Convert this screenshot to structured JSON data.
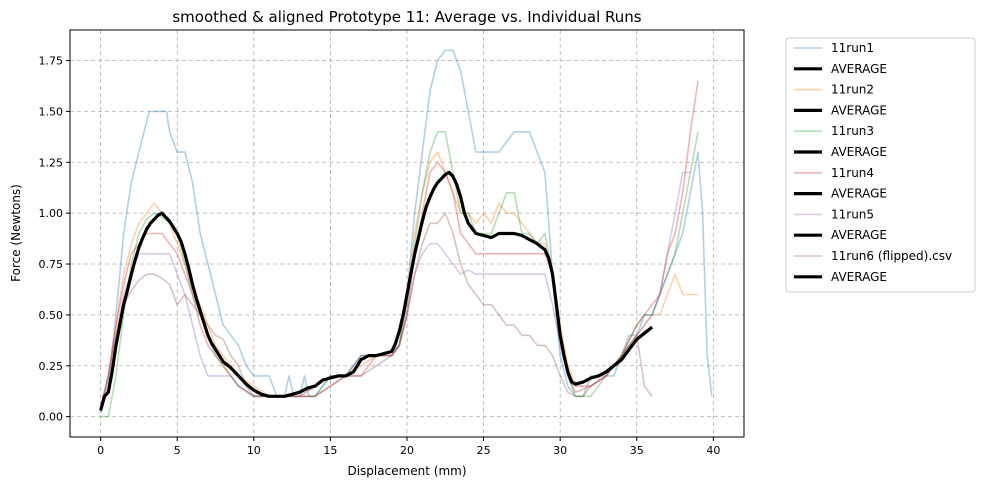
{
  "chart_data": {
    "type": "line",
    "title": "smoothed & aligned Prototype 11: Average vs. Individual Runs",
    "xlabel": "Displacement (mm)",
    "ylabel": "Force (Newtons)",
    "xlim": [
      -2,
      42
    ],
    "ylim": [
      -0.1,
      1.9
    ],
    "x_ticks": [
      0,
      5,
      10,
      15,
      20,
      25,
      30,
      35,
      40
    ],
    "y_ticks": [
      0.0,
      0.25,
      0.5,
      0.75,
      1.0,
      1.25,
      1.5,
      1.75
    ],
    "x_tick_labels": [
      "0",
      "5",
      "10",
      "15",
      "20",
      "25",
      "30",
      "35",
      "40"
    ],
    "y_tick_labels": [
      "0.00",
      "0.25",
      "0.50",
      "0.75",
      "1.00",
      "1.25",
      "1.50",
      "1.75"
    ],
    "grid": true,
    "legend_position": "outside-right",
    "legend": [
      {
        "label": "11run1",
        "color": "#1f77b4",
        "style": "thin"
      },
      {
        "label": "AVERAGE",
        "color": "#000000",
        "style": "thick"
      },
      {
        "label": "11run2",
        "color": "#ff7f0e",
        "style": "thin"
      },
      {
        "label": "AVERAGE",
        "color": "#000000",
        "style": "thick"
      },
      {
        "label": "11run3",
        "color": "#2ca02c",
        "style": "thin"
      },
      {
        "label": "AVERAGE",
        "color": "#000000",
        "style": "thick"
      },
      {
        "label": "11run4",
        "color": "#d62728",
        "style": "thin"
      },
      {
        "label": "AVERAGE",
        "color": "#000000",
        "style": "thick"
      },
      {
        "label": "11run5",
        "color": "#9467bd",
        "style": "thin"
      },
      {
        "label": "AVERAGE",
        "color": "#000000",
        "style": "thick"
      },
      {
        "label": "11run6 (flipped).csv",
        "color": "#8c564b",
        "style": "thin"
      },
      {
        "label": "AVERAGE",
        "color": "#000000",
        "style": "thick"
      }
    ],
    "series": [
      {
        "name": "11run1",
        "color": "#1f77b4",
        "x": [
          0,
          0.5,
          1,
          1.5,
          2,
          2.5,
          3,
          3.2,
          4,
          4.3,
          4.5,
          5,
          5.5,
          6,
          6.5,
          7,
          7.5,
          8,
          8.5,
          9,
          9.5,
          10,
          10.5,
          11,
          11.5,
          12,
          12.3,
          12.6,
          13,
          13.3,
          13.6,
          14,
          15,
          16,
          17,
          18,
          19,
          19.5,
          20,
          20.5,
          21,
          21.5,
          22,
          22.5,
          23,
          23.5,
          24,
          24.5,
          25,
          26,
          27,
          27.5,
          28,
          28.5,
          29,
          29.3,
          29.6,
          30,
          30.5,
          31,
          31.5,
          32,
          32.5,
          33,
          33.5,
          34,
          34.5,
          35,
          35.5,
          36,
          36.5,
          37,
          37.5,
          38,
          38.5,
          39,
          39.3,
          39.6,
          39.9
        ],
        "y": [
          0.02,
          0.15,
          0.5,
          0.9,
          1.15,
          1.3,
          1.45,
          1.5,
          1.5,
          1.5,
          1.4,
          1.3,
          1.3,
          1.15,
          0.9,
          0.75,
          0.6,
          0.45,
          0.4,
          0.35,
          0.25,
          0.2,
          0.2,
          0.2,
          0.1,
          0.1,
          0.2,
          0.1,
          0.1,
          0.2,
          0.1,
          0.1,
          0.2,
          0.2,
          0.3,
          0.3,
          0.32,
          0.35,
          0.6,
          1.0,
          1.3,
          1.6,
          1.75,
          1.8,
          1.8,
          1.7,
          1.5,
          1.3,
          1.3,
          1.3,
          1.4,
          1.4,
          1.4,
          1.3,
          1.2,
          0.9,
          0.6,
          0.3,
          0.15,
          0.1,
          0.1,
          0.2,
          0.2,
          0.2,
          0.2,
          0.3,
          0.4,
          0.4,
          0.5,
          0.5,
          0.6,
          0.7,
          0.8,
          0.9,
          1.1,
          1.3,
          1.0,
          0.3,
          0.1
        ]
      },
      {
        "name": "11run2",
        "color": "#ff7f0e",
        "x": [
          0,
          0.5,
          1,
          1.5,
          2,
          2.5,
          3,
          3.5,
          4,
          4.5,
          5,
          5.5,
          6,
          6.5,
          7,
          7.5,
          8,
          8.5,
          9,
          10,
          11,
          12,
          13,
          14,
          15,
          16,
          17,
          18,
          19,
          19.5,
          20,
          20.5,
          21,
          21.5,
          22,
          22.5,
          23,
          23.5,
          24,
          24.5,
          25,
          25.5,
          26,
          26.5,
          27,
          27.5,
          28,
          28.5,
          29,
          29.5,
          30,
          30.5,
          31,
          32,
          33,
          34,
          35,
          35.5,
          36,
          36.5,
          37,
          37.5,
          38,
          38.5,
          39
        ],
        "y": [
          0.05,
          0.2,
          0.45,
          0.7,
          0.85,
          0.95,
          1.0,
          1.05,
          1.0,
          0.95,
          0.85,
          0.75,
          0.62,
          0.55,
          0.45,
          0.35,
          0.3,
          0.25,
          0.2,
          0.15,
          0.1,
          0.1,
          0.1,
          0.15,
          0.2,
          0.2,
          0.25,
          0.3,
          0.3,
          0.35,
          0.6,
          0.9,
          1.1,
          1.25,
          1.3,
          1.2,
          1.1,
          1.0,
          1.0,
          0.95,
          1.0,
          0.95,
          1.05,
          1.0,
          1.0,
          0.95,
          0.9,
          0.85,
          0.85,
          0.7,
          0.45,
          0.25,
          0.15,
          0.15,
          0.2,
          0.3,
          0.4,
          0.45,
          0.5,
          0.5,
          0.6,
          0.7,
          0.6,
          0.6,
          0.6
        ]
      },
      {
        "name": "11run3",
        "color": "#2ca02c",
        "x": [
          0,
          0.5,
          1,
          1.5,
          2,
          2.5,
          3,
          3.5,
          4,
          4.5,
          5,
          5.5,
          6,
          6.5,
          7,
          7.5,
          8,
          8.5,
          9,
          10,
          11,
          12,
          13,
          14,
          15,
          16,
          17,
          18,
          19,
          19.5,
          20,
          20.5,
          21,
          21.5,
          22,
          22.5,
          23,
          23.5,
          24,
          24.5,
          25,
          25.5,
          26,
          26.5,
          27,
          27.5,
          28,
          28.5,
          29,
          29.5,
          30,
          30.5,
          31,
          32,
          33,
          34,
          35,
          35.5,
          36,
          36.5,
          37,
          37.5,
          38,
          38.5,
          39
        ],
        "y": [
          0.0,
          0.0,
          0.2,
          0.5,
          0.75,
          0.9,
          0.97,
          1.0,
          0.98,
          0.95,
          0.9,
          0.75,
          0.6,
          0.5,
          0.4,
          0.3,
          0.25,
          0.2,
          0.15,
          0.1,
          0.1,
          0.1,
          0.1,
          0.1,
          0.2,
          0.2,
          0.3,
          0.3,
          0.3,
          0.35,
          0.55,
          0.85,
          1.1,
          1.3,
          1.4,
          1.4,
          1.2,
          1.0,
          1.0,
          0.9,
          0.9,
          0.9,
          1.0,
          1.1,
          1.1,
          0.9,
          0.9,
          0.85,
          0.9,
          0.7,
          0.4,
          0.2,
          0.1,
          0.1,
          0.2,
          0.3,
          0.45,
          0.5,
          0.5,
          0.6,
          0.7,
          0.8,
          1.0,
          1.2,
          1.4
        ]
      },
      {
        "name": "11run4",
        "color": "#d62728",
        "x": [
          0,
          0.5,
          1,
          1.5,
          2,
          2.5,
          3,
          3.5,
          4,
          4.5,
          5,
          5.5,
          6,
          6.5,
          7,
          7.5,
          8,
          8.5,
          9,
          10,
          11,
          12,
          13,
          14,
          15,
          16,
          17,
          18,
          19,
          19.5,
          20,
          20.5,
          21,
          21.5,
          22,
          22.5,
          23,
          23.5,
          24,
          24.5,
          25,
          25.5,
          26,
          26.5,
          27,
          27.5,
          28,
          28.5,
          29,
          29.5,
          30,
          30.5,
          31,
          32,
          33,
          34,
          35,
          35.5,
          36,
          36.5,
          37,
          37.5,
          38,
          38.5,
          39
        ],
        "y": [
          0.03,
          0.2,
          0.45,
          0.65,
          0.8,
          0.85,
          0.9,
          0.9,
          0.9,
          0.85,
          0.8,
          0.7,
          0.6,
          0.45,
          0.35,
          0.3,
          0.25,
          0.2,
          0.15,
          0.1,
          0.1,
          0.1,
          0.1,
          0.1,
          0.15,
          0.2,
          0.2,
          0.3,
          0.3,
          0.35,
          0.5,
          0.8,
          1.0,
          1.2,
          1.25,
          1.2,
          1.1,
          0.9,
          0.85,
          0.8,
          0.8,
          0.8,
          0.8,
          0.8,
          0.8,
          0.8,
          0.8,
          0.8,
          0.8,
          0.7,
          0.4,
          0.2,
          0.12,
          0.15,
          0.2,
          0.3,
          0.45,
          0.5,
          0.55,
          0.6,
          0.8,
          0.9,
          1.1,
          1.4,
          1.65
        ]
      },
      {
        "name": "11run5",
        "color": "#9467bd",
        "x": [
          0,
          0.5,
          1,
          1.5,
          2,
          2.5,
          3,
          3.5,
          4,
          4.5,
          5,
          5.5,
          6,
          6.5,
          7,
          7.5,
          8,
          8.5,
          9,
          10,
          11,
          12,
          13,
          14,
          15,
          16,
          17,
          18,
          19,
          19.5,
          20,
          20.5,
          21,
          21.5,
          22,
          22.5,
          23,
          23.5,
          24,
          24.5,
          25,
          25.5,
          26,
          26.5,
          27,
          27.5,
          28,
          28.5,
          29,
          29.5,
          30,
          30.5,
          31,
          32,
          33,
          34,
          35,
          35.5,
          36,
          36.5,
          37,
          37.5,
          38,
          38.5
        ],
        "y": [
          0.02,
          0.2,
          0.4,
          0.6,
          0.7,
          0.8,
          0.8,
          0.8,
          0.8,
          0.8,
          0.7,
          0.6,
          0.45,
          0.3,
          0.2,
          0.2,
          0.2,
          0.2,
          0.15,
          0.1,
          0.1,
          0.1,
          0.1,
          0.15,
          0.2,
          0.2,
          0.3,
          0.3,
          0.3,
          0.35,
          0.5,
          0.7,
          0.8,
          0.85,
          0.85,
          0.8,
          0.75,
          0.7,
          0.72,
          0.7,
          0.7,
          0.7,
          0.7,
          0.7,
          0.7,
          0.7,
          0.7,
          0.7,
          0.7,
          0.55,
          0.35,
          0.2,
          0.15,
          0.15,
          0.2,
          0.3,
          0.4,
          0.45,
          0.5,
          0.6,
          0.8,
          1.0,
          1.2,
          1.2
        ]
      },
      {
        "name": "11run6 (flipped).csv",
        "color": "#8c564b",
        "x": [
          0,
          0.5,
          1,
          1.5,
          2,
          2.5,
          3,
          3.5,
          4,
          4.5,
          5,
          5.5,
          6,
          6.5,
          7,
          7.5,
          8,
          8.5,
          9,
          9.5,
          10,
          11,
          12,
          13,
          14,
          15,
          16,
          17,
          18,
          19,
          19.5,
          20,
          20.5,
          21,
          21.5,
          22,
          22.5,
          23,
          23.5,
          24,
          24.5,
          25,
          25.5,
          26,
          26.5,
          27,
          27.5,
          28,
          28.5,
          29,
          29.5,
          30,
          30.5,
          31,
          31.5,
          32,
          33,
          34,
          35,
          35.5,
          36
        ],
        "y": [
          0.05,
          0.2,
          0.4,
          0.55,
          0.62,
          0.67,
          0.7,
          0.7,
          0.68,
          0.65,
          0.55,
          0.6,
          0.55,
          0.5,
          0.45,
          0.4,
          0.38,
          0.3,
          0.25,
          0.15,
          0.1,
          0.1,
          0.1,
          0.1,
          0.1,
          0.15,
          0.2,
          0.2,
          0.25,
          0.3,
          0.35,
          0.5,
          0.7,
          0.85,
          0.95,
          0.95,
          1.0,
          0.9,
          0.75,
          0.65,
          0.6,
          0.55,
          0.55,
          0.5,
          0.45,
          0.45,
          0.4,
          0.4,
          0.35,
          0.35,
          0.3,
          0.2,
          0.12,
          0.1,
          0.1,
          0.15,
          0.2,
          0.3,
          0.4,
          0.15,
          0.1
        ]
      },
      {
        "name": "AVERAGE",
        "color": "#000000",
        "x": [
          0,
          0.25,
          0.5,
          0.75,
          1,
          1.25,
          1.5,
          1.75,
          2,
          2.25,
          2.5,
          2.75,
          3,
          3.25,
          3.5,
          3.75,
          4,
          4.25,
          4.5,
          4.75,
          5,
          5.25,
          5.5,
          5.75,
          6,
          6.25,
          6.5,
          6.75,
          7,
          7.25,
          7.5,
          7.75,
          8,
          8.5,
          9,
          9.5,
          10,
          10.5,
          11,
          11.5,
          12,
          12.5,
          13,
          13.5,
          14,
          14.5,
          15,
          15.5,
          16,
          16.5,
          17,
          17.5,
          18,
          18.5,
          19,
          19.25,
          19.5,
          19.75,
          20,
          20.25,
          20.5,
          20.75,
          21,
          21.25,
          21.5,
          21.75,
          22,
          22.25,
          22.5,
          22.75,
          23,
          23.25,
          23.5,
          23.75,
          24,
          24.5,
          25,
          25.5,
          26,
          26.5,
          27,
          27.5,
          28,
          28.5,
          29,
          29.25,
          29.5,
          29.75,
          30,
          30.25,
          30.5,
          30.75,
          31,
          31.5,
          32,
          32.5,
          33,
          33.5,
          34,
          34.5,
          35,
          35.5,
          36
        ],
        "y": [
          0.03,
          0.1,
          0.12,
          0.22,
          0.35,
          0.45,
          0.55,
          0.62,
          0.7,
          0.77,
          0.83,
          0.88,
          0.92,
          0.95,
          0.97,
          0.99,
          1.0,
          0.98,
          0.96,
          0.93,
          0.9,
          0.86,
          0.8,
          0.73,
          0.65,
          0.58,
          0.52,
          0.46,
          0.4,
          0.36,
          0.33,
          0.3,
          0.27,
          0.24,
          0.2,
          0.16,
          0.13,
          0.11,
          0.1,
          0.1,
          0.1,
          0.11,
          0.12,
          0.14,
          0.15,
          0.18,
          0.19,
          0.2,
          0.2,
          0.22,
          0.28,
          0.3,
          0.3,
          0.31,
          0.32,
          0.36,
          0.42,
          0.5,
          0.6,
          0.7,
          0.8,
          0.88,
          0.96,
          1.03,
          1.08,
          1.12,
          1.15,
          1.17,
          1.19,
          1.2,
          1.18,
          1.14,
          1.08,
          1.0,
          0.95,
          0.9,
          0.89,
          0.88,
          0.9,
          0.9,
          0.9,
          0.89,
          0.87,
          0.85,
          0.82,
          0.78,
          0.7,
          0.55,
          0.4,
          0.3,
          0.22,
          0.17,
          0.16,
          0.17,
          0.19,
          0.2,
          0.22,
          0.25,
          0.28,
          0.33,
          0.38,
          0.41,
          0.44
        ]
      }
    ]
  }
}
